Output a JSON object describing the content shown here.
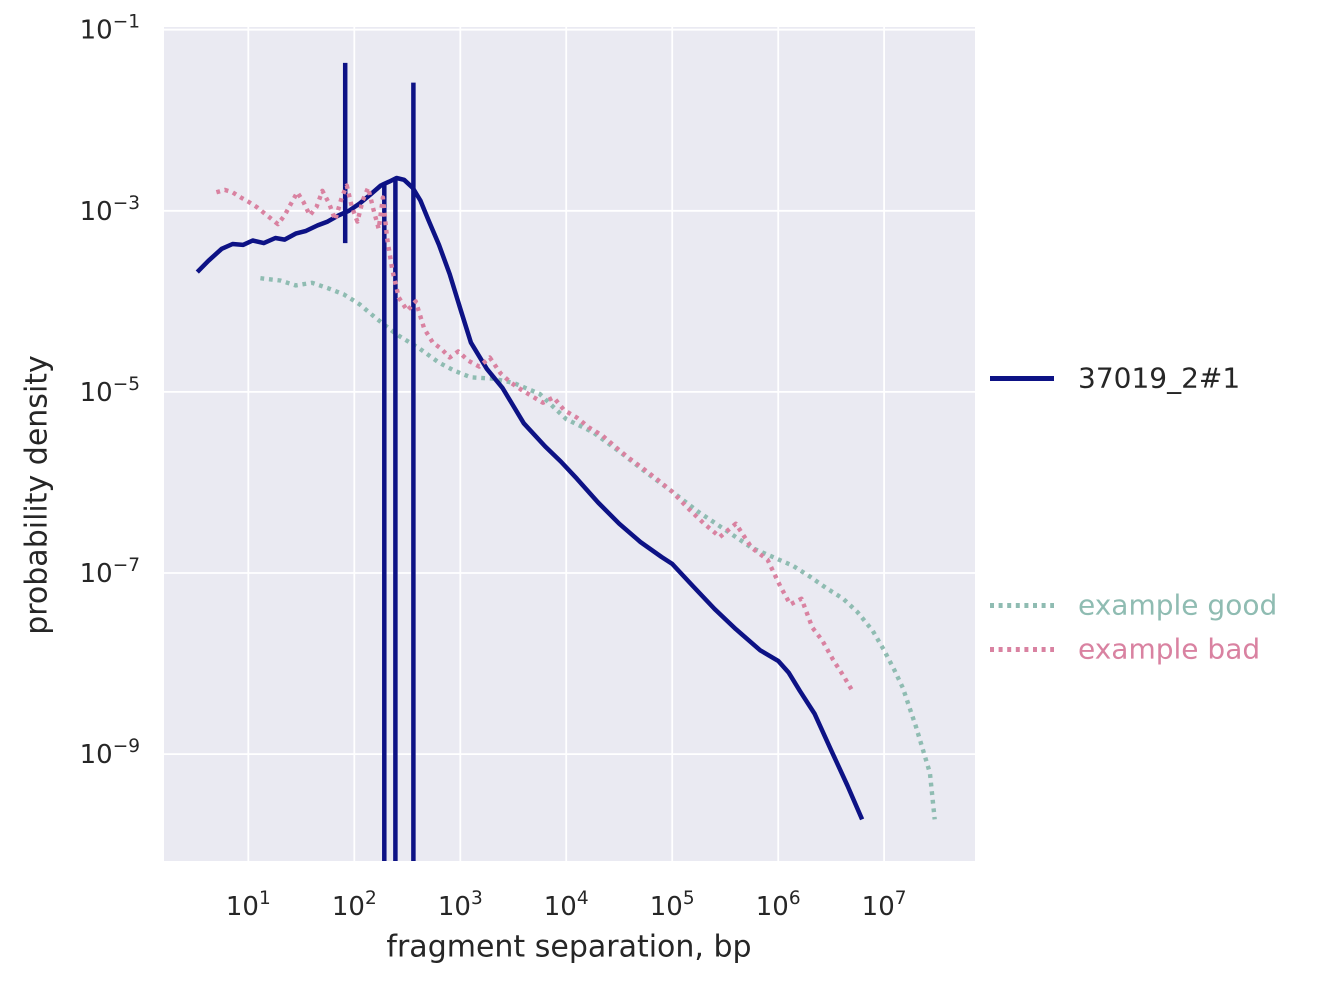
{
  "figure": {
    "xlabel": "fragment separation, bp",
    "ylabel": "probability density"
  },
  "legend": {
    "primary": {
      "label": "37019_2#1",
      "text_color": "#262626",
      "line_color": "#0d1285",
      "line_style": "solid"
    },
    "good": {
      "label": "example good",
      "text_color": "#8fbcb2",
      "line_color": "#8fbcb2",
      "line_style": "dotted"
    },
    "bad": {
      "label": "example bad",
      "text_color": "#d982a1",
      "line_color": "#d982a1",
      "line_style": "dotted"
    }
  },
  "chart_data": {
    "type": "line",
    "title": "",
    "xlabel": "fragment separation, bp",
    "ylabel": "probability density",
    "xscale": "log",
    "yscale": "log",
    "xlim": [
      1.6,
      72000000
    ],
    "ylim": [
      6.6e-11,
      0.107
    ],
    "x_tick_exponents": [
      1,
      2,
      3,
      4,
      5,
      6,
      7
    ],
    "y_tick_exponents": [
      -1,
      -3,
      -5,
      -7,
      -9
    ],
    "grid": true,
    "grid_color": "#ffffff",
    "background": "#eaeaf2",
    "tick_color": "#262626",
    "legend_position": "right",
    "series": [
      {
        "name": "example good",
        "color": "#8fbcb2",
        "style": "dotted",
        "points": [
          [
            13,
            0.00018
          ],
          [
            20,
            0.00017
          ],
          [
            28,
            0.00015
          ],
          [
            40,
            0.00016
          ],
          [
            56,
            0.00014
          ],
          [
            79,
            0.00012
          ],
          [
            112,
            9.3e-05
          ],
          [
            158,
            6.6e-05
          ],
          [
            251,
            4.3e-05
          ],
          [
            398,
            3.1e-05
          ],
          [
            631,
            2.1e-05
          ],
          [
            891,
            1.7e-05
          ],
          [
            1260,
            1.45e-05
          ],
          [
            2000,
            1.4e-05
          ],
          [
            3160,
            1.26e-05
          ],
          [
            5620,
            9.5e-06
          ],
          [
            10000,
            5e-06
          ],
          [
            17800,
            3.6e-06
          ],
          [
            31600,
            2.2e-06
          ],
          [
            56200,
            1.3e-06
          ],
          [
            100000,
            7.9e-07
          ],
          [
            178000,
            4.7e-07
          ],
          [
            316000,
            3e-07
          ],
          [
            562000,
            1.9e-07
          ],
          [
            891000,
            1.5e-07
          ],
          [
            1380000,
            1.2e-07
          ],
          [
            2000000,
            9.1e-08
          ],
          [
            2800000,
            6.9e-08
          ],
          [
            4100000,
            5.2e-08
          ],
          [
            5600000,
            3.7e-08
          ],
          [
            7800000,
            2.3e-08
          ],
          [
            10000000,
            1.4e-08
          ],
          [
            12600000,
            8.3e-09
          ],
          [
            15000000,
            5.4e-09
          ],
          [
            20000000,
            2e-09
          ],
          [
            27000000,
            6.2e-10
          ],
          [
            30000000,
            1.9e-10
          ]
        ]
      },
      {
        "name": "37019_2#1",
        "color": "#0d1285",
        "style": "solid",
        "points": [
          [
            3.3,
            0.00021
          ],
          [
            4.2,
            0.00028
          ],
          [
            5.6,
            0.00038
          ],
          [
            7.1,
            0.00043
          ],
          [
            8.9,
            0.00042
          ],
          [
            11,
            0.00047
          ],
          [
            14,
            0.00044
          ],
          [
            18,
            0.0005
          ],
          [
            22,
            0.00048
          ],
          [
            28,
            0.00056
          ],
          [
            35,
            0.0006
          ],
          [
            45,
            0.00069
          ],
          [
            56,
            0.00076
          ],
          [
            71,
            0.00089
          ],
          [
            89,
            0.001
          ],
          [
            112,
            0.0012
          ],
          [
            141,
            0.0015
          ],
          [
            178,
            0.0019
          ],
          [
            214,
            0.0021
          ],
          [
            250,
            0.0023
          ],
          [
            295,
            0.0022
          ],
          [
            355,
            0.0018
          ],
          [
            420,
            0.0013
          ],
          [
            500,
            0.00079
          ],
          [
            630,
            0.00042
          ],
          [
            795,
            0.0002
          ],
          [
            1000,
            8.3e-05
          ],
          [
            1260,
            3.5e-05
          ],
          [
            1780,
            1.8e-05
          ],
          [
            2510,
            1.1e-05
          ],
          [
            3980,
            4.5e-06
          ],
          [
            6310,
            2.5e-06
          ],
          [
            8900,
            1.7e-06
          ],
          [
            12600,
            1.1e-06
          ],
          [
            20000,
            6e-07
          ],
          [
            31600,
            3.5e-07
          ],
          [
            50100,
            2.2e-07
          ],
          [
            79400,
            1.5e-07
          ],
          [
            100000,
            1.26e-07
          ],
          [
            158000,
            7.1e-08
          ],
          [
            251000,
            4e-08
          ],
          [
            398000,
            2.4e-08
          ],
          [
            676000,
            1.4e-08
          ],
          [
            1000000,
            1.07e-08
          ],
          [
            1260000,
            7.9e-09
          ],
          [
            1600000,
            5e-09
          ],
          [
            2200000,
            2.8e-09
          ],
          [
            3200000,
            1.07e-09
          ],
          [
            4500000,
            4.5e-10
          ],
          [
            6200000,
            1.9e-10
          ]
        ],
        "vlines": [
          {
            "x": 82,
            "y_from": 0.00044,
            "y_to": 0.043
          },
          {
            "x": 192,
            "y_from": 0.002,
            "y_to": 6.6e-11
          },
          {
            "x": 244,
            "y_from": 0.0023,
            "y_to": 6.6e-11
          },
          {
            "x": 361,
            "y_from": 0.026,
            "y_to": 6.6e-11
          }
        ]
      },
      {
        "name": "example bad",
        "color": "#d982a1",
        "style": "dotted",
        "points": [
          [
            5.0,
            0.0016
          ],
          [
            6.0,
            0.0017
          ],
          [
            7.1,
            0.0016
          ],
          [
            8.5,
            0.0014
          ],
          [
            10,
            0.00126
          ],
          [
            12,
            0.0011
          ],
          [
            14,
            0.00095
          ],
          [
            17,
            0.00079
          ],
          [
            19,
            0.00071
          ],
          [
            22,
            0.00089
          ],
          [
            25,
            0.00117
          ],
          [
            29,
            0.0016
          ],
          [
            33,
            0.00126
          ],
          [
            38,
            0.00089
          ],
          [
            44,
            0.0011
          ],
          [
            50,
            0.00166
          ],
          [
            58,
            0.0012
          ],
          [
            66,
            0.00079
          ],
          [
            76,
            0.0014
          ],
          [
            85,
            0.0019
          ],
          [
            95,
            0.0011
          ],
          [
            107,
            0.00076
          ],
          [
            120,
            0.0013
          ],
          [
            135,
            0.0018
          ],
          [
            151,
            0.00105
          ],
          [
            170,
            0.00063
          ],
          [
            186,
            0.0014
          ],
          [
            204,
            0.0005
          ],
          [
            229,
            0.00022
          ],
          [
            263,
            0.00011
          ],
          [
            316,
            7.9e-05
          ],
          [
            380,
            0.0001
          ],
          [
            457,
            5e-05
          ],
          [
            550,
            3.5e-05
          ],
          [
            661,
            3e-05
          ],
          [
            794,
            2.4e-05
          ],
          [
            955,
            2.8e-05
          ],
          [
            1200,
            2.2e-05
          ],
          [
            1510,
            1.9e-05
          ],
          [
            1900,
            2.4e-05
          ],
          [
            2400,
            1.6e-05
          ],
          [
            3020,
            1.26e-05
          ],
          [
            3800,
            1.05e-05
          ],
          [
            4790,
            8.9e-06
          ],
          [
            6030,
            7.6e-06
          ],
          [
            7590,
            8.7e-06
          ],
          [
            9550,
            6.3e-06
          ],
          [
            12600,
            5.2e-06
          ],
          [
            16600,
            4e-06
          ],
          [
            21900,
            3.3e-06
          ],
          [
            28800,
            2.5e-06
          ],
          [
            38000,
            1.9e-06
          ],
          [
            50100,
            1.5e-06
          ],
          [
            70800,
            1.1e-06
          ],
          [
            100000,
            7.9e-07
          ],
          [
            141000,
            5.2e-07
          ],
          [
            200000,
            3.5e-07
          ],
          [
            282000,
            2.5e-07
          ],
          [
            398000,
            3.5e-07
          ],
          [
            562000,
            1.9e-07
          ],
          [
            794000,
            1.4e-07
          ],
          [
            1050000,
            7.1e-08
          ],
          [
            1300000,
            4.5e-08
          ],
          [
            1660000,
            5.2e-08
          ],
          [
            2100000,
            2.5e-08
          ],
          [
            2600000,
            1.8e-08
          ],
          [
            3300000,
            1.1e-08
          ],
          [
            4200000,
            7.1e-09
          ],
          [
            5100000,
            4.8e-09
          ]
        ]
      }
    ]
  }
}
